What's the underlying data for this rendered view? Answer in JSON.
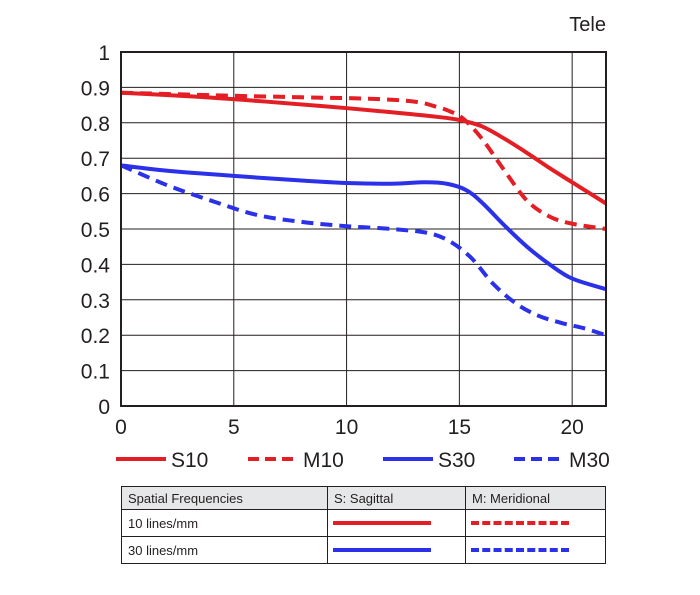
{
  "corner_label": "Tele",
  "chart_data": {
    "type": "line",
    "xlabel": "",
    "ylabel": "",
    "xlim": [
      0,
      21.5
    ],
    "ylim": [
      0,
      1
    ],
    "x_ticks": [
      0,
      5,
      10,
      15,
      20
    ],
    "x_tick_labels": [
      "0",
      "5",
      "10",
      "15",
      "20"
    ],
    "y_ticks": [
      0,
      0.1,
      0.2,
      0.3,
      0.4,
      0.5,
      0.6,
      0.7,
      0.8,
      0.9,
      1
    ],
    "y_tick_labels": [
      "0",
      "0.1",
      "0.2",
      "0.3",
      "0.4",
      "0.5",
      "0.6",
      "0.7",
      "0.8",
      "0.9",
      "1"
    ],
    "grid": true,
    "legend_position": "bottom",
    "series": [
      {
        "name": "S10",
        "color": "#e31e24",
        "dash": "solid",
        "x": [
          0,
          3,
          6,
          9,
          12,
          14,
          15,
          16,
          17,
          18,
          19,
          20,
          21.5
        ],
        "y": [
          0.885,
          0.875,
          0.862,
          0.847,
          0.83,
          0.817,
          0.808,
          0.79,
          0.755,
          0.715,
          0.672,
          0.632,
          0.572
        ]
      },
      {
        "name": "M10",
        "color": "#e31e24",
        "dash": "dashed",
        "x": [
          0,
          4,
          8,
          11,
          13,
          14,
          14.6,
          15.2,
          16,
          17,
          18,
          19,
          20,
          21.5
        ],
        "y": [
          0.885,
          0.878,
          0.872,
          0.868,
          0.86,
          0.845,
          0.832,
          0.81,
          0.755,
          0.665,
          0.58,
          0.535,
          0.515,
          0.5
        ]
      },
      {
        "name": "S30",
        "color": "#2b31e8",
        "dash": "solid",
        "x": [
          0,
          2,
          5,
          8,
          10,
          12,
          13.5,
          14.5,
          15.3,
          16,
          17,
          18,
          19,
          20,
          21.5
        ],
        "y": [
          0.68,
          0.665,
          0.65,
          0.637,
          0.63,
          0.628,
          0.632,
          0.627,
          0.61,
          0.575,
          0.51,
          0.45,
          0.4,
          0.36,
          0.33
        ]
      },
      {
        "name": "M30",
        "color": "#2b31e8",
        "dash": "dashed",
        "x": [
          0,
          2,
          4,
          6,
          8,
          10,
          12,
          13.5,
          14.5,
          15.5,
          16.5,
          17.5,
          18.5,
          19.5,
          20.5,
          21.5
        ],
        "y": [
          0.68,
          0.625,
          0.58,
          0.54,
          0.52,
          0.508,
          0.5,
          0.49,
          0.468,
          0.42,
          0.345,
          0.29,
          0.255,
          0.235,
          0.22,
          0.2
        ]
      }
    ]
  },
  "table": {
    "headers": [
      "Spatial Frequencies",
      "S: Sagittal",
      "M: Meridional"
    ],
    "rows": [
      {
        "label": "10 lines/mm",
        "color": "#e31e24"
      },
      {
        "label": "30 lines/mm",
        "color": "#2b31e8"
      }
    ]
  }
}
